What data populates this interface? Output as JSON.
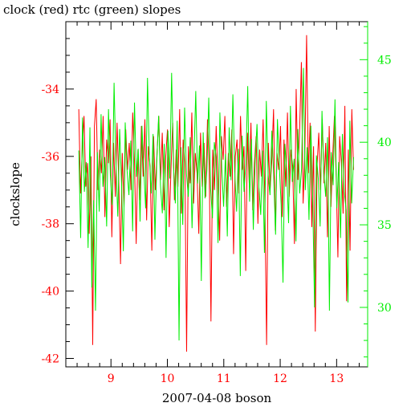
{
  "chart_data": {
    "type": "line",
    "title": "clock (red) rtc (green) slopes",
    "xlabel": "2007-04-08 boson",
    "ylabel": "clockslope",
    "x_range": [
      8.2,
      13.55
    ],
    "y_left_range": [
      -42.25,
      -32.0
    ],
    "y_right_range": [
      26.4,
      47.3
    ],
    "x_ticks": [
      9,
      10,
      11,
      12,
      13
    ],
    "y_left_ticks": [
      -34,
      -36,
      -38,
      -40,
      -42
    ],
    "y_right_ticks": [
      30,
      35,
      40,
      45
    ],
    "tick_labels": {
      "x": [
        "9",
        "10",
        "11",
        "12",
        "13"
      ],
      "y_left": [
        "-34",
        "-36",
        "-38",
        "-40",
        "-42"
      ],
      "y_right": [
        "30",
        "35",
        "40",
        "45"
      ]
    },
    "colors": {
      "clock": "#ff0000",
      "rtc": "#00ee00",
      "axes": "#000000"
    },
    "grid": false,
    "series": [
      {
        "name": "clock",
        "axis": "left",
        "x_start": 8.43,
        "x_end": 13.3,
        "values": [
          -34.6,
          -37.1,
          -35.8,
          -34.8,
          -36.9,
          -36.2,
          -38.3,
          -36.0,
          -41.6,
          -35.1,
          -34.3,
          -37.0,
          -35.8,
          -36.5,
          -34.8,
          -37.8,
          -35.5,
          -36.2,
          -34.9,
          -38.4,
          -35.6,
          -37.2,
          -35.0,
          -36.8,
          -39.2,
          -35.9,
          -37.5,
          -35.2,
          -36.4,
          -35.6,
          -37.0,
          -34.7,
          -36.1,
          -38.6,
          -35.8,
          -37.3,
          -35.1,
          -36.6,
          -34.9,
          -37.9,
          -35.7,
          -36.3,
          -38.8,
          -35.4,
          -37.0,
          -35.9,
          -34.8,
          -36.7,
          -35.3,
          -37.6,
          -36.0,
          -35.2,
          -38.1,
          -36.4,
          -35.0,
          -37.3,
          -35.8,
          -36.9,
          -34.6,
          -37.7,
          -35.5,
          -36.2,
          -41.8,
          -35.7,
          -36.8,
          -34.7,
          -37.4,
          -35.9,
          -36.5,
          -38.3,
          -35.3,
          -36.9,
          -35.6,
          -37.2,
          -34.9,
          -36.3,
          -40.9,
          -35.8,
          -37.0,
          -35.1,
          -36.7,
          -38.5,
          -35.4,
          -36.1,
          -34.8,
          -37.5,
          -35.9,
          -36.6,
          -35.2,
          -38.9,
          -36.0,
          -35.5,
          -37.1,
          -34.8,
          -36.4,
          -35.7,
          -39.4,
          -35.3,
          -36.8,
          -35.0,
          -37.6,
          -36.2,
          -35.4,
          -38.0,
          -35.8,
          -36.6,
          -34.9,
          -37.3,
          -41.6,
          -35.6,
          -37.0,
          -36.1,
          -34.6,
          -38.2,
          -35.9,
          -36.4,
          -35.1,
          -37.8,
          -35.5,
          -36.9,
          -34.7,
          -37.2,
          -35.8,
          -36.3,
          -38.6,
          -34.0,
          -36.7,
          -35.2,
          -33.2,
          -37.4,
          -35.9,
          -32.4,
          -36.5,
          -35.0,
          -38.1,
          -35.7,
          -41.2,
          -36.3,
          -35.3,
          -37.0,
          -34.9,
          -36.8,
          -35.6,
          -38.4,
          -35.1,
          -37.5,
          -36.0,
          -34.8,
          -36.6,
          -39.0,
          -35.4,
          -36.2,
          -37.7,
          -34.5,
          -40.3,
          -35.8,
          -38.8,
          -34.6,
          -36.4
        ]
      },
      {
        "name": "rtc",
        "axis": "right",
        "x_start": 8.43,
        "x_end": 13.3,
        "values": [
          39.5,
          34.2,
          41.5,
          37.0,
          38.8,
          33.6,
          40.9,
          31.2,
          36.5,
          29.8,
          39.4,
          35.8,
          41.7,
          37.3,
          39.1,
          34.9,
          42.0,
          38.0,
          36.2,
          43.6,
          38.7,
          35.5,
          40.8,
          37.6,
          33.4,
          41.2,
          38.3,
          36.8,
          40.1,
          34.6,
          42.4,
          37.9,
          39.6,
          35.2,
          41.0,
          38.4,
          36.0,
          43.9,
          39.2,
          36.9,
          40.5,
          34.1,
          38.8,
          41.6,
          37.4,
          35.7,
          39.9,
          33.0,
          40.7,
          37.8,
          44.2,
          38.6,
          36.3,
          41.3,
          28.0,
          39.7,
          35.0,
          42.1,
          38.1,
          36.7,
          40.3,
          34.8,
          38.9,
          43.1,
          37.5,
          39.8,
          31.6,
          40.6,
          36.6,
          38.3,
          42.7,
          37.2,
          35.4,
          40.0,
          39.1,
          33.9,
          41.8,
          38.5,
          36.1,
          39.3,
          34.3,
          40.9,
          37.7,
          42.9,
          38.2,
          35.8,
          39.6,
          31.9,
          40.4,
          37.0,
          38.7,
          43.4,
          36.4,
          40.2,
          34.7,
          38.9,
          41.1,
          37.3,
          35.6,
          39.5,
          33.3,
          42.5,
          38.0,
          36.8,
          40.7,
          37.9,
          34.4,
          41.4,
          38.6,
          36.2,
          31.5,
          39.9,
          38.3,
          35.1,
          42.2,
          37.6,
          39.0,
          34.0,
          40.8,
          36.9,
          38.4,
          44.5,
          37.1,
          39.7,
          35.3,
          41.0,
          36.5,
          30.0,
          39.2,
          37.8,
          34.9,
          41.9,
          38.1,
          36.7,
          40.3,
          29.8,
          39.4,
          37.4,
          42.6,
          36.0,
          38.8,
          34.2,
          40.5,
          37.0,
          35.9,
          30.3,
          41.3,
          36.3,
          39.1
        ]
      }
    ]
  }
}
